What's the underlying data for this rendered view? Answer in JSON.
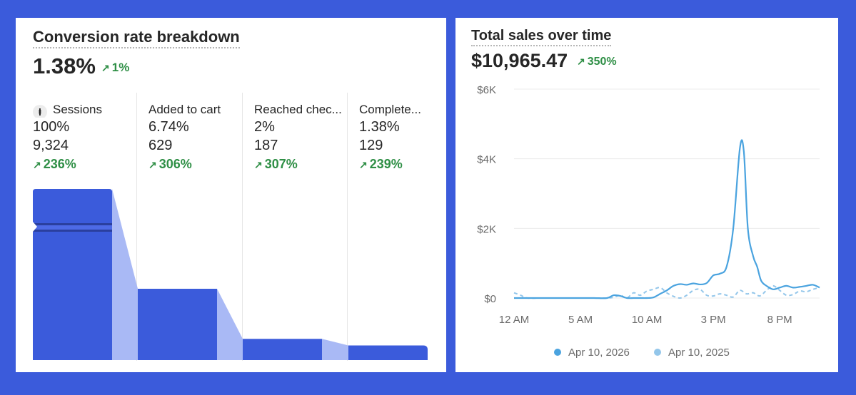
{
  "colors": {
    "background": "#3b5bdb",
    "bar": "#3b5bdb",
    "bar_connector": "#a9b9f5",
    "positive": "#2f8f46",
    "series_current": "#4aa3df",
    "series_previous": "#93c6ea"
  },
  "conversion": {
    "title": "Conversion rate breakdown",
    "value": "1.38%",
    "delta": "1%",
    "steps": [
      {
        "label": "Sessions",
        "percent": "100%",
        "count": "9,324",
        "delta": "236%",
        "icon": "sessions-icon"
      },
      {
        "label": "Added to cart",
        "percent": "6.74%",
        "count": "629",
        "delta": "306%"
      },
      {
        "label": "Reached chec...",
        "percent": "2%",
        "count": "187",
        "delta": "307%"
      },
      {
        "label": "Complete...",
        "percent": "1.38%",
        "count": "129",
        "delta": "239%"
      }
    ]
  },
  "sales": {
    "title": "Total sales over time",
    "value": "$10,965.47",
    "delta": "350%",
    "legend": [
      {
        "label": "Apr 10, 2026"
      },
      {
        "label": "Apr 10, 2025"
      }
    ]
  },
  "chart_data": [
    {
      "type": "bar",
      "title": "Conversion rate breakdown",
      "categories": [
        "Sessions",
        "Added to cart",
        "Reached chec...",
        "Complete..."
      ],
      "values": [
        9324,
        629,
        187,
        129
      ],
      "note_axis": "broken"
    },
    {
      "type": "line",
      "title": "Total sales over time",
      "ylim": [
        0,
        6000
      ],
      "yticks": [
        "$0",
        "$2K",
        "$4K",
        "$6K"
      ],
      "ytick_values": [
        0,
        2000,
        4000,
        6000
      ],
      "xticks": [
        "12 AM",
        "5 AM",
        "10 AM",
        "3 PM",
        "8 PM"
      ],
      "xtick_hours": [
        0,
        5,
        10,
        15,
        20
      ],
      "grid": true,
      "legend_position": "bottom",
      "series": [
        {
          "name": "Apr 10, 2026",
          "x": [
            0,
            1,
            2,
            3,
            4,
            5,
            6,
            7,
            7.5,
            8,
            8.5,
            9,
            9.5,
            10,
            10.5,
            11,
            11.5,
            12,
            12.5,
            13,
            13.5,
            14,
            14.5,
            15,
            15.5,
            16,
            16.5,
            17,
            17.3,
            17.6,
            18,
            18.3,
            18.6,
            19,
            19.5,
            20,
            20.5,
            21,
            21.5,
            22,
            22.5,
            23
          ],
          "y": [
            0,
            0,
            0,
            0,
            0,
            0,
            0,
            0,
            80,
            60,
            0,
            0,
            0,
            0,
            20,
            120,
            220,
            350,
            400,
            380,
            420,
            390,
            430,
            650,
            700,
            900,
            2000,
            4300,
            4200,
            2000,
            1200,
            900,
            500,
            350,
            250,
            300,
            350,
            300,
            320,
            350,
            380,
            300
          ]
        },
        {
          "name": "Apr 10, 2025",
          "x": [
            0,
            0.5,
            1,
            2,
            3,
            4,
            5,
            6,
            7,
            7.5,
            8,
            8.5,
            9,
            9.5,
            10,
            10.5,
            11,
            11.5,
            12,
            12.5,
            13,
            13.5,
            14,
            14.5,
            15,
            15.5,
            16,
            16.5,
            17,
            17.5,
            18,
            18.5,
            19,
            19.5,
            20,
            20.5,
            21,
            21.5,
            22,
            22.5,
            23
          ],
          "y": [
            150,
            80,
            0,
            0,
            0,
            0,
            0,
            0,
            0,
            20,
            80,
            0,
            150,
            80,
            200,
            250,
            300,
            150,
            50,
            0,
            80,
            220,
            250,
            80,
            60,
            120,
            80,
            30,
            220,
            120,
            150,
            60,
            220,
            350,
            220,
            80,
            100,
            200,
            180,
            250,
            300
          ]
        }
      ]
    }
  ]
}
